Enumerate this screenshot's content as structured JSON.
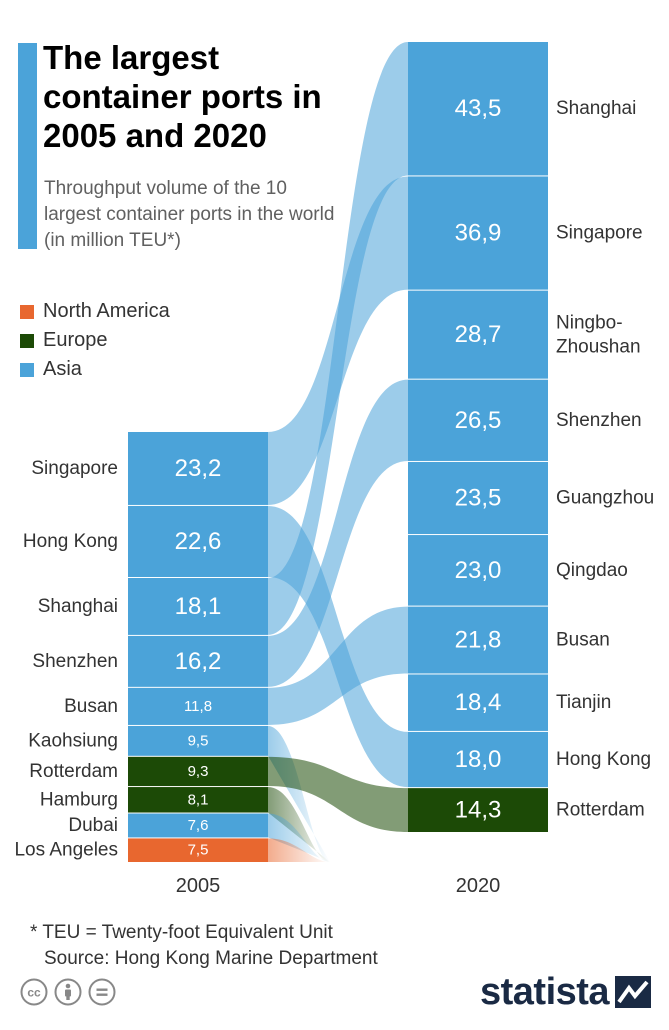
{
  "title": "The largest container ports in 2005 and 2020",
  "subtitle": "Throughput volume of the 10 largest container ports in the world (in million TEU*)",
  "legend": [
    {
      "label": "North America",
      "color": "#e8672f"
    },
    {
      "label": "Europe",
      "color": "#1c4a06"
    },
    {
      "label": "Asia",
      "color": "#4ba3d9"
    }
  ],
  "footnote": "* TEU = Twenty-foot Equivalent Unit",
  "source": "Source: Hong Kong Marine Department",
  "brand": "statista",
  "license_icons": [
    "creative-commons-icon",
    "attribution-icon",
    "no-derivatives-icon"
  ],
  "chart_data": {
    "type": "table",
    "columns": [
      "2005",
      "2020"
    ],
    "region_colors": {
      "Asia": "#4ba3d9",
      "Europe": "#1c4a06",
      "North America": "#e8672f"
    },
    "years": [
      {
        "year": "2005",
        "ports": [
          {
            "name": "Singapore",
            "value": "23,2",
            "region": "Asia"
          },
          {
            "name": "Hong Kong",
            "value": "22,6",
            "region": "Asia"
          },
          {
            "name": "Shanghai",
            "value": "18,1",
            "region": "Asia"
          },
          {
            "name": "Shenzhen",
            "value": "16,2",
            "region": "Asia"
          },
          {
            "name": "Busan",
            "value": "11,8",
            "region": "Asia"
          },
          {
            "name": "Kaohsiung",
            "value": "9,5",
            "region": "Asia"
          },
          {
            "name": "Rotterdam",
            "value": "9,3",
            "region": "Europe"
          },
          {
            "name": "Hamburg",
            "value": "8,1",
            "region": "Europe"
          },
          {
            "name": "Dubai",
            "value": "7,6",
            "region": "Asia"
          },
          {
            "name": "Los Angeles",
            "value": "7,5",
            "region": "North America"
          }
        ]
      },
      {
        "year": "2020",
        "ports": [
          {
            "name": "Shanghai",
            "value": "43,5",
            "region": "Asia"
          },
          {
            "name": "Singapore",
            "value": "36,9",
            "region": "Asia"
          },
          {
            "name": "Ningbo-Zhoushan",
            "value": "28,7",
            "region": "Asia"
          },
          {
            "name": "Shenzhen",
            "value": "26,5",
            "region": "Asia"
          },
          {
            "name": "Guangzhou",
            "value": "23,5",
            "region": "Asia"
          },
          {
            "name": "Qingdao",
            "value": "23,0",
            "region": "Asia"
          },
          {
            "name": "Busan",
            "value": "21,8",
            "region": "Asia"
          },
          {
            "name": "Tianjin",
            "value": "18,4",
            "region": "Asia"
          },
          {
            "name": "Hong Kong",
            "value": "18,0",
            "region": "Asia"
          },
          {
            "name": "Rotterdam",
            "value": "14,3",
            "region": "Europe"
          }
        ]
      }
    ]
  }
}
